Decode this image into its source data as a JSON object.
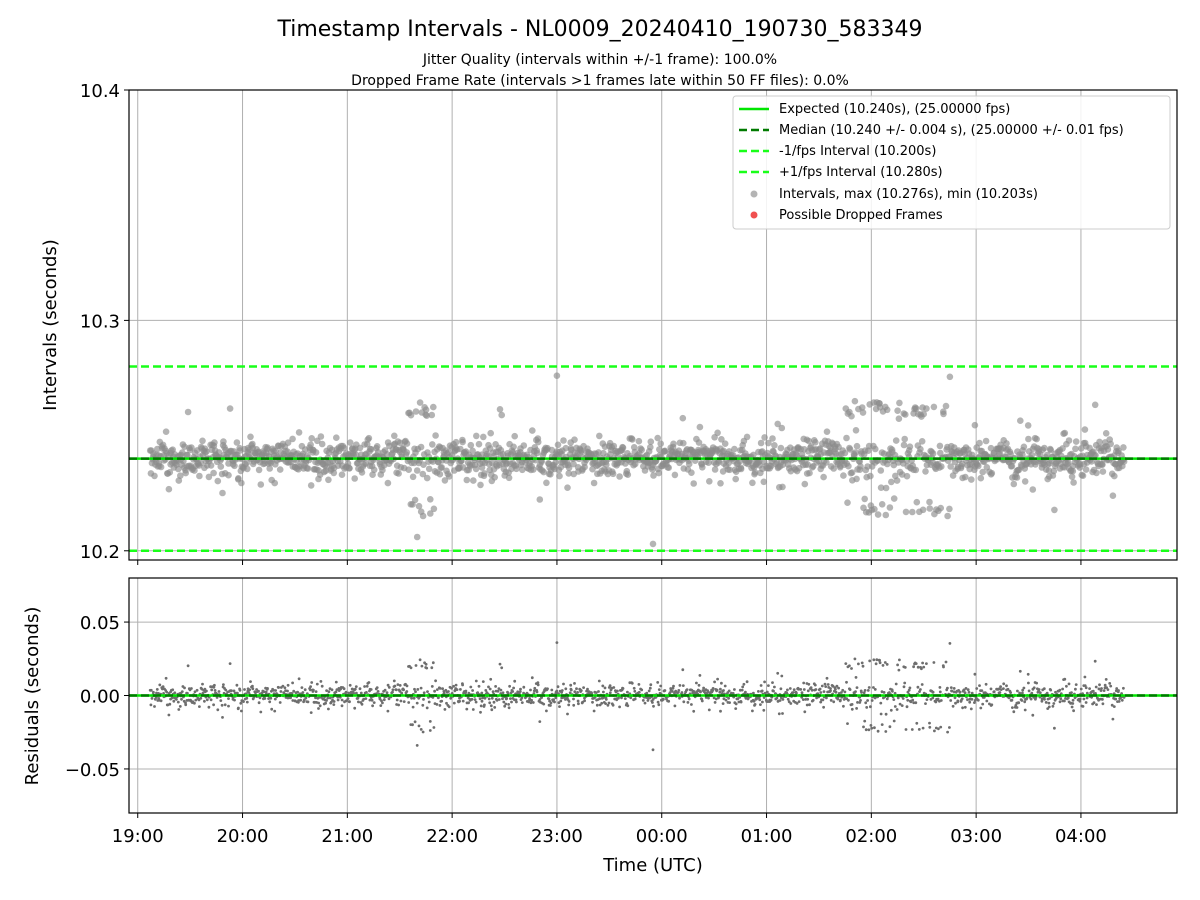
{
  "title": "Timestamp Intervals - NL0009_20240410_190730_583349",
  "subtitle_1": "Jitter Quality (intervals within +/-1 frame): 100.0%",
  "subtitle_2": "Dropped Frame Rate (intervals >1 frames late within 50 FF files): 0.0%",
  "colors": {
    "expected": "#00e600",
    "median": "#007a00",
    "bounds": "#19ff19",
    "points": "#8c8c8c",
    "residual_points": "#6e6e6e",
    "dropped": "#f05050",
    "grid": "#b0b0b0"
  },
  "chart_data": [
    {
      "type": "scatter",
      "ylabel": "Intervals (seconds)",
      "xlabel": "",
      "xlim": [
        "18:55",
        "04:55"
      ],
      "ylim": [
        10.196,
        10.4
      ],
      "y_ticks": [
        "10.2",
        "10.3",
        "10.4"
      ],
      "x_ticks": [
        "19:00",
        "20:00",
        "21:00",
        "22:00",
        "23:00",
        "00:00",
        "01:00",
        "02:00",
        "03:00",
        "04:00"
      ],
      "grid": true,
      "legend_position": "top-right",
      "legend": [
        "Expected (10.240s), (25.00000 fps)",
        "Median (10.240 +/- 0.004 s), (25.00000 +/- 0.01 fps)",
        "-1/fps Interval (10.200s)",
        "+1/fps Interval (10.280s)",
        "Intervals, max (10.276s), min (10.203s)",
        "Possible Dropped Frames"
      ],
      "reference_lines": {
        "expected": 10.24,
        "median": 10.24,
        "minus_one_frame": 10.2,
        "plus_one_frame": 10.28
      },
      "series": [
        {
          "name": "Intervals, max (10.276s), min (10.203s)",
          "time_range": [
            "19:07",
            "04:25"
          ],
          "count": 3270,
          "center": 10.24,
          "typical_spread": 0.004,
          "max": 10.276,
          "min": 10.203,
          "high_jitter_periods": [
            [
              "21:35",
              "21:50"
            ],
            [
              "01:45",
              "02:45"
            ]
          ]
        },
        {
          "name": "Possible Dropped Frames",
          "count": 0
        }
      ]
    },
    {
      "type": "scatter",
      "ylabel": "Residuals (seconds)",
      "xlabel": "Time (UTC)",
      "xlim": [
        "18:55",
        "04:55"
      ],
      "ylim": [
        -0.08,
        0.08
      ],
      "y_ticks": [
        "−0.05",
        "0.00",
        "0.05"
      ],
      "x_ticks": [
        "19:00",
        "20:00",
        "21:00",
        "22:00",
        "23:00",
        "00:00",
        "01:00",
        "02:00",
        "03:00",
        "04:00"
      ],
      "grid": true,
      "reference_lines": {
        "expected": 0.0,
        "median": 0.0
      },
      "series": [
        {
          "name": "Residuals",
          "time_range": [
            "19:07",
            "04:25"
          ],
          "max": 0.036,
          "min": -0.037
        }
      ]
    }
  ]
}
